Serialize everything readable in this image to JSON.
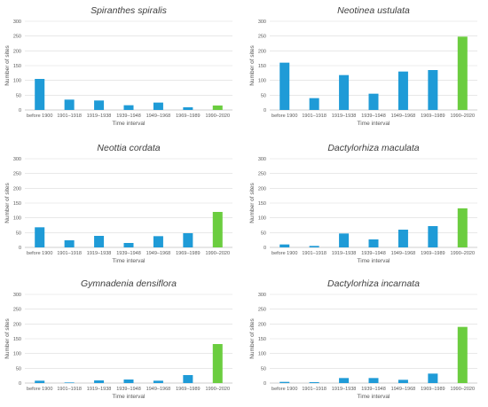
{
  "colors": {
    "historic_bar": "#1f9bd7",
    "recent_bar": "#6bcd3f",
    "grid": "#d9d9d9",
    "axis": "#bfbfbf"
  },
  "chart_data": [
    {
      "type": "bar",
      "title": "Spiranthes spiralis",
      "xlabel": "Time interval",
      "ylabel": "Number of sites",
      "ylim": [
        0,
        300
      ],
      "yticks": [
        "0",
        "50",
        "100",
        "150",
        "200",
        "250",
        "300"
      ],
      "grid": true,
      "categories": [
        "before 1900",
        "1901–1918",
        "1919–1938",
        "1939–1948",
        "1949–1968",
        "1969–1989",
        "1990–2020"
      ],
      "values": [
        105,
        35,
        32,
        16,
        25,
        9,
        15
      ]
    },
    {
      "type": "bar",
      "title": "Neotinea ustulata",
      "xlabel": "Time interval",
      "ylabel": "Number of sites",
      "ylim": [
        0,
        300
      ],
      "yticks": [
        "0",
        "50",
        "100",
        "150",
        "200",
        "250",
        "300"
      ],
      "grid": true,
      "categories": [
        "before 1900",
        "1901–1918",
        "1919–1938",
        "1939–1948",
        "1949–1968",
        "1969–1989",
        "1990–2020"
      ],
      "values": [
        160,
        40,
        118,
        55,
        130,
        135,
        248
      ]
    },
    {
      "type": "bar",
      "title": "Neottia cordata",
      "xlabel": "Time interval",
      "ylabel": "Number of sites",
      "ylim": [
        0,
        300
      ],
      "yticks": [
        "0",
        "50",
        "100",
        "150",
        "200",
        "250",
        "300"
      ],
      "grid": true,
      "categories": [
        "before 1900",
        "1901–1918",
        "1919–1938",
        "1939–1948",
        "1949–1968",
        "1969–1989",
        "1990–2020"
      ],
      "values": [
        68,
        24,
        39,
        15,
        38,
        48,
        120
      ]
    },
    {
      "type": "bar",
      "title": "Dactylorhiza maculata",
      "xlabel": "Time interval",
      "ylabel": "Number of sites",
      "ylim": [
        0,
        300
      ],
      "yticks": [
        "0",
        "50",
        "100",
        "150",
        "200",
        "250",
        "300"
      ],
      "grid": true,
      "categories": [
        "before 1900",
        "1901–1918",
        "1919–1938",
        "1939–1948",
        "1949–1968",
        "1969–1989",
        "1990–2020"
      ],
      "values": [
        10,
        5,
        47,
        27,
        60,
        72,
        132
      ]
    },
    {
      "type": "bar",
      "title": "Gymnadenia densiflora",
      "xlabel": "Time interval",
      "ylabel": "Number of sites",
      "ylim": [
        0,
        300
      ],
      "yticks": [
        "0",
        "50",
        "100",
        "150",
        "200",
        "250",
        "300"
      ],
      "grid": true,
      "categories": [
        "before 1900",
        "1901–1918",
        "1919–1938",
        "1939–1948",
        "1949–1968",
        "1969–1989",
        "1990–2020"
      ],
      "values": [
        8,
        2,
        9,
        12,
        8,
        27,
        132
      ]
    },
    {
      "type": "bar",
      "title": "Dactylorhiza incarnata",
      "xlabel": "Time interval",
      "ylabel": "Number of sites",
      "ylim": [
        0,
        300
      ],
      "yticks": [
        "0",
        "50",
        "100",
        "150",
        "200",
        "250",
        "300"
      ],
      "grid": true,
      "categories": [
        "before 1900",
        "1901–1918",
        "1919–1938",
        "1939–1948",
        "1949–1968",
        "1969–1989",
        "1990–2020"
      ],
      "values": [
        4,
        3,
        17,
        17,
        11,
        32,
        190
      ]
    }
  ]
}
